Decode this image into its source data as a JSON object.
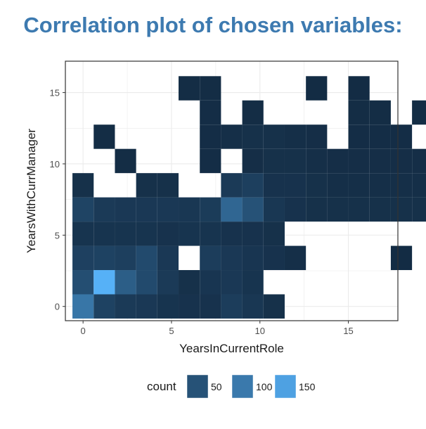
{
  "title": "Correlation plot of chosen variables:",
  "chart_data": {
    "type": "heatmap",
    "title": "Correlation plot of chosen variables:",
    "xlabel": "YearsInCurrentRole",
    "ylabel": "YearsWithCurrManager",
    "xlim": [
      -1,
      17.8
    ],
    "ylim": [
      -1,
      17.2
    ],
    "x_ticks": [
      0,
      5,
      10,
      15
    ],
    "y_ticks": [
      0,
      5,
      10,
      15
    ],
    "grid": true,
    "legend_title": "count",
    "legend_entries": [
      50,
      100,
      150
    ],
    "legend_position": "bottom",
    "fill_scale": {
      "low_color": "#132b43",
      "high_color": "#56b1f7",
      "min": 1,
      "max": 170
    },
    "cells": [
      [
        0,
        0,
        95
      ],
      [
        1,
        0,
        30
      ],
      [
        2,
        0,
        20
      ],
      [
        3,
        0,
        18
      ],
      [
        4,
        0,
        12
      ],
      [
        5,
        0,
        10
      ],
      [
        6,
        0,
        10
      ],
      [
        7,
        0,
        24
      ],
      [
        8,
        0,
        16
      ],
      [
        9,
        0,
        8
      ],
      [
        0,
        1,
        45
      ],
      [
        1,
        1,
        170
      ],
      [
        2,
        1,
        65
      ],
      [
        3,
        1,
        40
      ],
      [
        4,
        1,
        20
      ],
      [
        5,
        1,
        8
      ],
      [
        6,
        1,
        14
      ],
      [
        7,
        1,
        18
      ],
      [
        8,
        1,
        12
      ],
      [
        0,
        2,
        28
      ],
      [
        1,
        2,
        30
      ],
      [
        2,
        2,
        26
      ],
      [
        3,
        2,
        40
      ],
      [
        4,
        2,
        18
      ],
      [
        6,
        2,
        24
      ],
      [
        7,
        2,
        18
      ],
      [
        8,
        2,
        14
      ],
      [
        9,
        2,
        10
      ],
      [
        10,
        2,
        6
      ],
      [
        15,
        2,
        2
      ],
      [
        0,
        3,
        12
      ],
      [
        1,
        3,
        12
      ],
      [
        2,
        3,
        12
      ],
      [
        3,
        3,
        12
      ],
      [
        4,
        3,
        10
      ],
      [
        5,
        3,
        12
      ],
      [
        6,
        3,
        12
      ],
      [
        7,
        3,
        10
      ],
      [
        8,
        3,
        10
      ],
      [
        9,
        3,
        8
      ],
      [
        0,
        4,
        32
      ],
      [
        1,
        4,
        20
      ],
      [
        2,
        4,
        18
      ],
      [
        3,
        4,
        18
      ],
      [
        4,
        4,
        18
      ],
      [
        5,
        4,
        16
      ],
      [
        6,
        4,
        22
      ],
      [
        7,
        4,
        75
      ],
      [
        8,
        4,
        50
      ],
      [
        9,
        4,
        16
      ],
      [
        10,
        4,
        10
      ],
      [
        11,
        4,
        8
      ],
      [
        12,
        4,
        8
      ],
      [
        13,
        4,
        8
      ],
      [
        14,
        4,
        8
      ],
      [
        15,
        4,
        8
      ],
      [
        16,
        4,
        8
      ],
      [
        0,
        5,
        8
      ],
      [
        3,
        5,
        8
      ],
      [
        4,
        5,
        8
      ],
      [
        7,
        5,
        20
      ],
      [
        8,
        5,
        26
      ],
      [
        9,
        5,
        10
      ],
      [
        10,
        5,
        10
      ],
      [
        11,
        5,
        8
      ],
      [
        12,
        5,
        6
      ],
      [
        13,
        5,
        6
      ],
      [
        14,
        5,
        6
      ],
      [
        15,
        5,
        6
      ],
      [
        16,
        5,
        6
      ],
      [
        2,
        6,
        3
      ],
      [
        6,
        6,
        4
      ],
      [
        8,
        6,
        5
      ],
      [
        9,
        6,
        8
      ],
      [
        10,
        6,
        8
      ],
      [
        11,
        6,
        6
      ],
      [
        12,
        6,
        5
      ],
      [
        13,
        6,
        5
      ],
      [
        14,
        6,
        5
      ],
      [
        15,
        6,
        5
      ],
      [
        16,
        6,
        5
      ],
      [
        1,
        7,
        3
      ],
      [
        6,
        7,
        4
      ],
      [
        7,
        7,
        6
      ],
      [
        8,
        7,
        8
      ],
      [
        9,
        7,
        8
      ],
      [
        10,
        7,
        6
      ],
      [
        11,
        7,
        5
      ],
      [
        13,
        7,
        4
      ],
      [
        14,
        7,
        4
      ],
      [
        15,
        7,
        4
      ],
      [
        6,
        8,
        4
      ],
      [
        8,
        8,
        3
      ],
      [
        13,
        8,
        3
      ],
      [
        14,
        8,
        3
      ],
      [
        16,
        8,
        3
      ],
      [
        5,
        9,
        3
      ],
      [
        6,
        9,
        3
      ],
      [
        11,
        9,
        2
      ],
      [
        13,
        9,
        2
      ]
    ]
  }
}
